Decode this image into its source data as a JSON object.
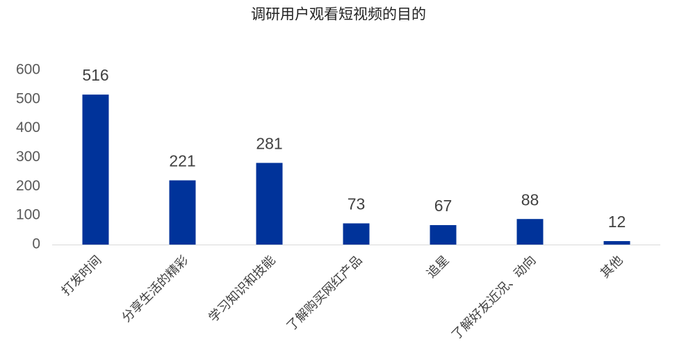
{
  "chart_data": {
    "type": "bar",
    "title": "调研用户观看短视频的目的",
    "categories": [
      "打发时间",
      "分享生活的精彩",
      "学习知识和技能",
      "了解购买网红产品",
      "追星",
      "了解好友近况、动向",
      "其他"
    ],
    "values": [
      516,
      221,
      281,
      73,
      67,
      88,
      12
    ],
    "color": "#00339a",
    "ylim": [
      0,
      600
    ],
    "yticks": [
      0,
      100,
      200,
      300,
      400,
      500,
      600
    ],
    "grid": false,
    "data_labels": true
  }
}
